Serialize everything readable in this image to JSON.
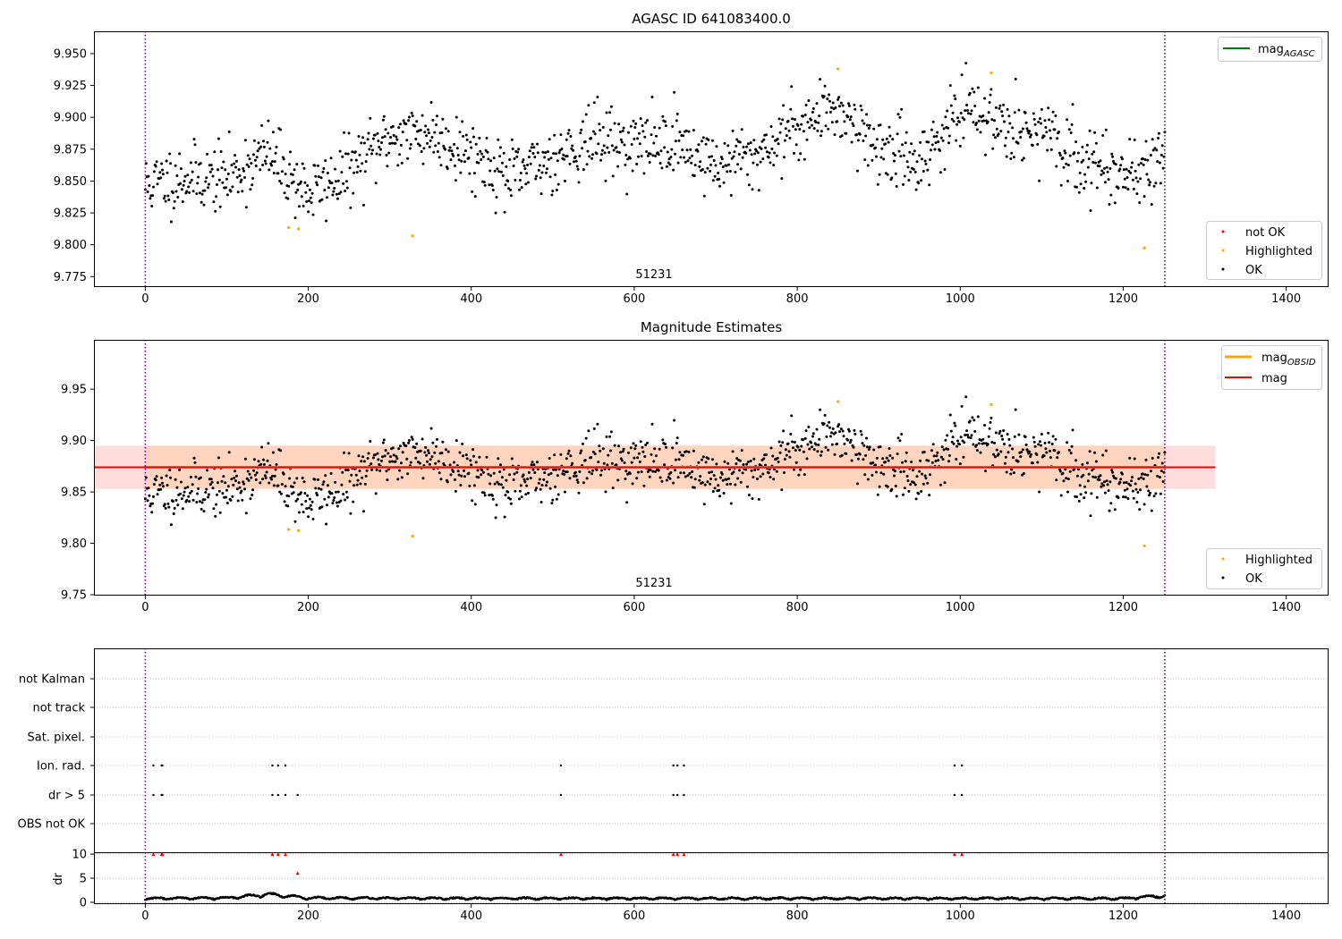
{
  "figure": {
    "panel1": {
      "title": "AGASC ID 641083400.0",
      "annotation": "51231",
      "line_legend": [
        "mag",
        "AGASC"
      ],
      "points_legend": [
        "not OK",
        "Highlighted",
        "OK"
      ]
    },
    "panel2": {
      "title": "Magnitude Estimates",
      "annotation": "51231",
      "line_legend": [
        [
          "mag",
          "OBSID"
        ],
        [
          "mag",
          ""
        ]
      ],
      "points_legend": [
        "Highlighted",
        "OK"
      ]
    },
    "panel3": {
      "flag_labels": [
        "not Kalman",
        "not track",
        "Sat. pixel.",
        "Ion. rad.",
        "dr > 5",
        "OBS not OK"
      ],
      "dr_ylabel": "dr"
    }
  },
  "colors": {
    "ok": "#000000",
    "highlighted": "#ffa500",
    "not_ok": "#ff0000",
    "agasc_line": "#008000",
    "obsid_line": "#ffa500",
    "mag_line": "#ff0000",
    "mag_band": "#ffdddd",
    "obsid_band": "#ffd5bf",
    "obs_boundary": "#800080"
  },
  "chart_data": [
    {
      "type": "scatter",
      "title": "AGASC ID 641083400.0",
      "xlabel": "",
      "ylabel": "",
      "xlim": [
        -63,
        1452
      ],
      "ylim": [
        9.7675,
        9.9675
      ],
      "xticks": [
        0,
        200,
        400,
        600,
        800,
        1000,
        1200,
        1400
      ],
      "yticks": [
        9.775,
        9.8,
        9.825,
        9.85,
        9.875,
        9.9,
        9.925,
        9.95
      ],
      "grid": false,
      "legend": [
        "upper right",
        "lower right"
      ],
      "vlines": [
        0,
        1251
      ],
      "annotation": {
        "text": "51231",
        "x": 625
      },
      "trend": {
        "x": [
          0,
          50,
          100,
          150,
          200,
          250,
          300,
          350,
          400,
          450,
          500,
          550,
          600,
          650,
          700,
          750,
          800,
          850,
          900,
          950,
          1000,
          1050,
          1100,
          1150,
          1200,
          1251
        ],
        "y": [
          9.847,
          9.853,
          9.852,
          9.872,
          9.84,
          9.858,
          9.885,
          9.888,
          9.872,
          9.852,
          9.868,
          9.883,
          9.878,
          9.882,
          9.862,
          9.871,
          9.893,
          9.908,
          9.875,
          9.866,
          9.903,
          9.898,
          9.886,
          9.865,
          9.858,
          9.862
        ],
        "noise": 0.013,
        "n_points": 1252
      },
      "series": [
        {
          "name": "Highlighted",
          "x": [
            176,
            188,
            328,
            850,
            1038,
            1226
          ],
          "y": [
            9.8135,
            9.8125,
            9.807,
            9.938,
            9.935,
            9.7975
          ]
        },
        {
          "name": "not OK",
          "x": [],
          "y": []
        }
      ]
    },
    {
      "type": "scatter",
      "title": "Magnitude Estimates",
      "xlabel": "",
      "ylabel": "",
      "xlim": [
        -63,
        1452
      ],
      "ylim": [
        9.75,
        9.998
      ],
      "xticks": [
        0,
        200,
        400,
        600,
        800,
        1000,
        1200,
        1400
      ],
      "yticks": [
        9.75,
        9.8,
        9.85,
        9.9,
        9.95
      ],
      "grid": false,
      "legend": [
        "upper right",
        "lower right"
      ],
      "vlines": [
        0,
        1251
      ],
      "annotation": {
        "text": "51231",
        "x": 625
      },
      "mag": {
        "value": 9.874,
        "band": [
          9.853,
          9.895
        ],
        "x": [
          -63,
          1313
        ]
      },
      "mag_obsid": {
        "value": 9.874,
        "band": [
          9.853,
          9.895
        ],
        "x": [
          0,
          1251
        ]
      },
      "series": [
        {
          "name": "Highlighted",
          "x": [
            176,
            188,
            328,
            850,
            1038,
            1226
          ],
          "y": [
            9.8135,
            9.8125,
            9.807,
            9.938,
            9.935,
            9.7975
          ]
        }
      ]
    },
    {
      "type": "scatter",
      "xlim": [
        -63,
        1452
      ],
      "categories": [
        "not Kalman",
        "not track",
        "Sat. pixel.",
        "Ion. rad.",
        "dr > 5",
        "OBS not OK"
      ],
      "grid": true,
      "vlines": [
        0,
        1251
      ],
      "series": [
        {
          "category": "Ion. rad.",
          "x": [
            10,
            20,
            21,
            156,
            163,
            172,
            510,
            648,
            653,
            661,
            993,
            1002
          ]
        },
        {
          "category": "dr > 5",
          "x": [
            10,
            20,
            21,
            156,
            163,
            172,
            187,
            510,
            648,
            653,
            661,
            993,
            1002
          ]
        }
      ]
    },
    {
      "type": "scatter",
      "ylabel": "dr",
      "xlim": [
        -63,
        1452
      ],
      "ylim": [
        -0.2,
        10.2
      ],
      "yticks": [
        0,
        5,
        10
      ],
      "xticks": [
        0,
        200,
        400,
        600,
        800,
        1000,
        1200,
        1400
      ],
      "grid": true,
      "vlines": [
        0,
        1251
      ],
      "trend": {
        "x": [
          0,
          100,
          150,
          170,
          200,
          400,
          600,
          800,
          1000,
          1200,
          1251
        ],
        "y": [
          0.8,
          0.9,
          1.8,
          1.5,
          0.9,
          0.8,
          0.8,
          0.8,
          0.8,
          0.8,
          1.5
        ],
        "n_points": 1252
      },
      "series": [
        {
          "name": "dr > 5",
          "x": [
            10,
            20,
            21,
            156,
            163,
            172,
            187,
            510,
            648,
            653,
            661,
            993,
            1002
          ],
          "y": [
            10,
            10,
            10,
            10,
            10,
            10,
            6.1,
            10,
            10,
            10,
            10,
            10,
            10
          ]
        }
      ]
    }
  ]
}
